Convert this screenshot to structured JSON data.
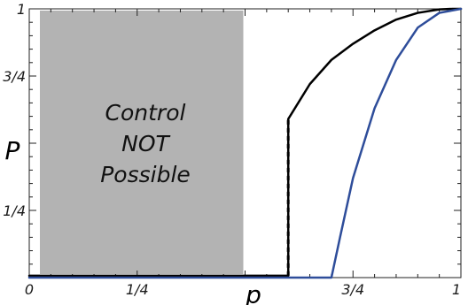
{
  "chart_data": {
    "type": "line",
    "xlabel": "p",
    "ylabel": "P",
    "xlim": [
      0,
      1
    ],
    "ylim": [
      0,
      1
    ],
    "x_ticks": [
      {
        "value": 0,
        "label": "0"
      },
      {
        "value": 0.25,
        "label": "1/4"
      },
      {
        "value": 0.75,
        "label": "3/4"
      },
      {
        "value": 1,
        "label": "1"
      }
    ],
    "y_ticks": [
      {
        "value": 0.25,
        "label": "1/4"
      },
      {
        "value": 0.75,
        "label": "3/4"
      },
      {
        "value": 1,
        "label": "1"
      }
    ],
    "shaded_region": {
      "x_range": [
        0.0,
        0.5
      ],
      "y_range": [
        0,
        1
      ],
      "color": "#b3b3b3",
      "label_lines": [
        "Control",
        "NOT",
        "Possible"
      ]
    },
    "series": [
      {
        "color": "#000000",
        "style": "solid",
        "x": [
          0.0,
          0.5,
          0.6,
          0.6,
          0.65,
          0.7,
          0.75,
          0.8,
          0.85,
          0.9,
          0.95,
          0.98,
          1.0
        ],
        "y": [
          0.007,
          0.007,
          0.007,
          0.59,
          0.72,
          0.81,
          0.87,
          0.92,
          0.96,
          0.985,
          0.998,
          1.0,
          1.0
        ]
      },
      {
        "color": "#2e4d9a",
        "style": "solid",
        "x": [
          0.0,
          0.5,
          0.6,
          0.7,
          0.72,
          0.75,
          0.8,
          0.85,
          0.9,
          0.95,
          1.0
        ],
        "y": [
          0.0,
          0.0,
          0.0,
          0.0,
          0.15,
          0.37,
          0.63,
          0.81,
          0.93,
          0.985,
          1.0
        ]
      }
    ],
    "dashed_segment": {
      "x": 0.6,
      "y_from": 0.007,
      "y_to": 0.59,
      "color": "#000000"
    }
  }
}
